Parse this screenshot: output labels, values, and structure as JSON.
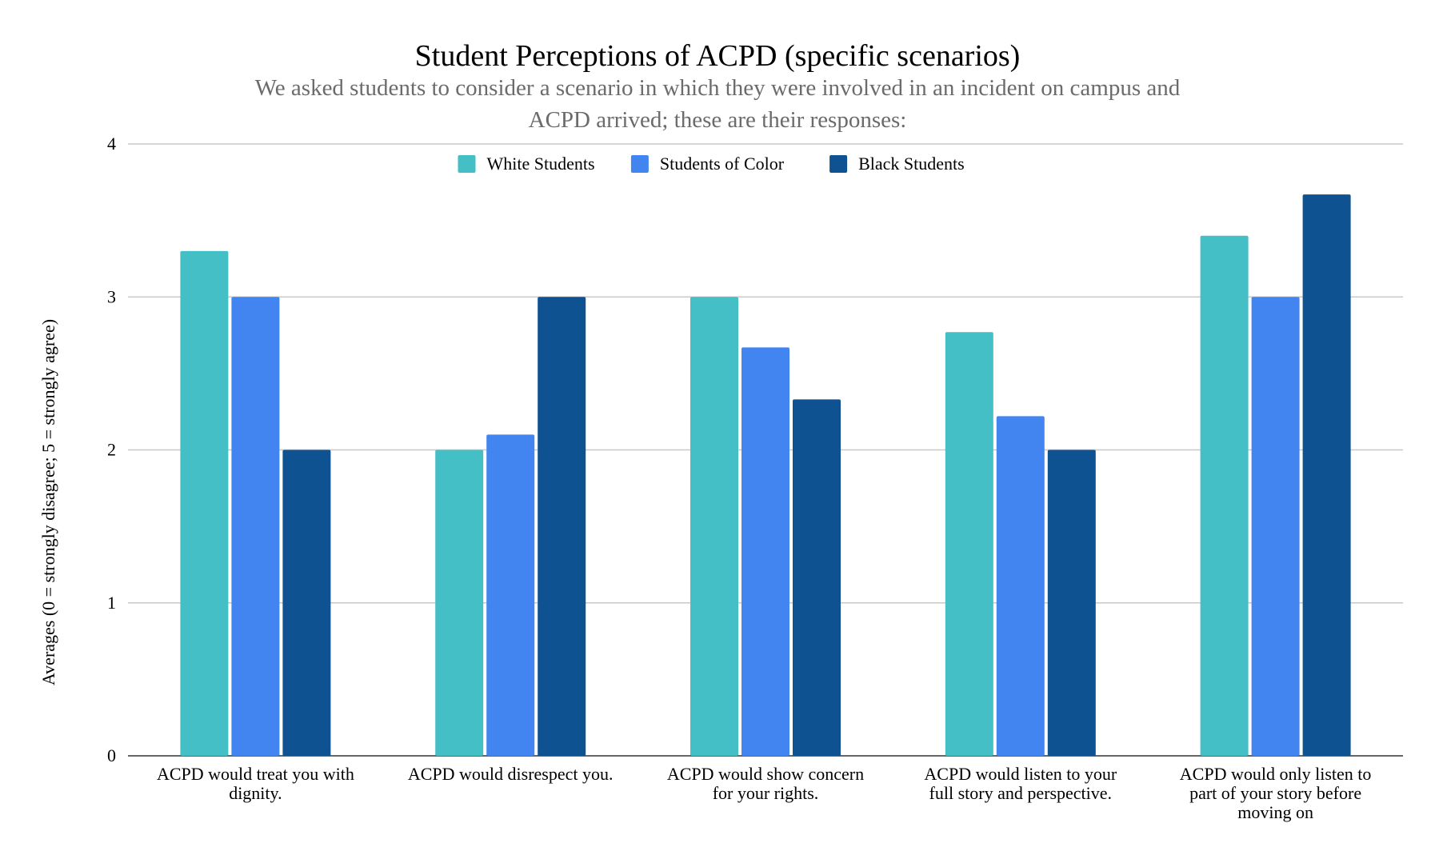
{
  "chart_data": {
    "type": "bar",
    "title": "Student Perceptions of ACPD (specific scenarios)",
    "subtitle_lines": [
      "We asked students to consider a scenario in which they were involved in an incident on campus and",
      "ACPD arrived; these are their responses:"
    ],
    "ylabel": "Averages (0 = strongly disagree; 5 = strongly agree)",
    "xlabel": "",
    "ylim": [
      0,
      4
    ],
    "yticks": [
      "0",
      "1",
      "2",
      "3",
      "4"
    ],
    "grid": true,
    "legend_position": "top-center",
    "categories": [
      [
        "ACPD would treat you with",
        "dignity."
      ],
      [
        "ACPD would disrespect you."
      ],
      [
        "ACPD would show concern",
        "for your rights."
      ],
      [
        "ACPD would listen to your",
        "full story and perspective."
      ],
      [
        "ACPD would only listen to",
        "part of your story before",
        "moving on"
      ]
    ],
    "series": [
      {
        "name": "White Students",
        "color": "#45bfc6",
        "values": [
          3.3,
          2.0,
          3.0,
          2.77,
          3.4
        ]
      },
      {
        "name": "Students of Color",
        "color": "#4285f0",
        "values": [
          3.0,
          2.1,
          2.67,
          2.22,
          3.0
        ]
      },
      {
        "name": "Black Students",
        "color": "#0e5291",
        "values": [
          2.0,
          3.0,
          2.33,
          2.0,
          3.67
        ]
      }
    ]
  }
}
